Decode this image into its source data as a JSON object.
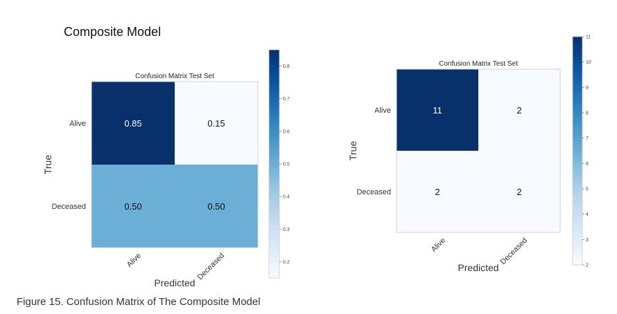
{
  "page_title": "Composite Model",
  "caption": "Figure 15. Confusion Matrix of The Composite Model",
  "chart_data": [
    {
      "type": "heatmap",
      "title": "Confusion Matrix Test Set",
      "xlabel": "Predicted",
      "ylabel": "True",
      "x_categories": [
        "Alive",
        "Deceased"
      ],
      "y_categories": [
        "Alive",
        "Deceased"
      ],
      "values": [
        [
          0.85,
          0.15
        ],
        [
          0.5,
          0.5
        ]
      ],
      "cell_labels": [
        [
          "0.85",
          "0.15"
        ],
        [
          "0.50",
          "0.50"
        ]
      ],
      "colorbar": {
        "min": 0.15,
        "max": 0.85,
        "ticks": [
          0.2,
          0.3,
          0.4,
          0.5,
          0.6,
          0.7,
          0.8
        ],
        "tick_labels": [
          "0.2",
          "0.3",
          "0.4",
          "0.5",
          "0.6",
          "0.7",
          "0.8"
        ]
      },
      "colormap": [
        "#f7fbff",
        "#deebf7",
        "#c6dbef",
        "#9ecae1",
        "#6baed6",
        "#4292c6",
        "#2171b5",
        "#08519c",
        "#08306b"
      ]
    },
    {
      "type": "heatmap",
      "title": "Confusion Matrix Test Set",
      "xlabel": "Predicted",
      "ylabel": "True",
      "x_categories": [
        "Alive",
        "Deceased"
      ],
      "y_categories": [
        "Alive",
        "Deceased"
      ],
      "values": [
        [
          11,
          2
        ],
        [
          2,
          2
        ]
      ],
      "cell_labels": [
        [
          "11",
          "2"
        ],
        [
          "2",
          "2"
        ]
      ],
      "colorbar": {
        "min": 2,
        "max": 11,
        "ticks": [
          2,
          3,
          4,
          5,
          6,
          7,
          8,
          9,
          10,
          11
        ],
        "tick_labels": [
          "2",
          "3",
          "4",
          "5",
          "6",
          "7",
          "8",
          "9",
          "10",
          "11"
        ]
      },
      "colormap": [
        "#f7fbff",
        "#deebf7",
        "#c6dbef",
        "#9ecae1",
        "#6baed6",
        "#4292c6",
        "#2171b5",
        "#08519c",
        "#08306b"
      ]
    }
  ]
}
